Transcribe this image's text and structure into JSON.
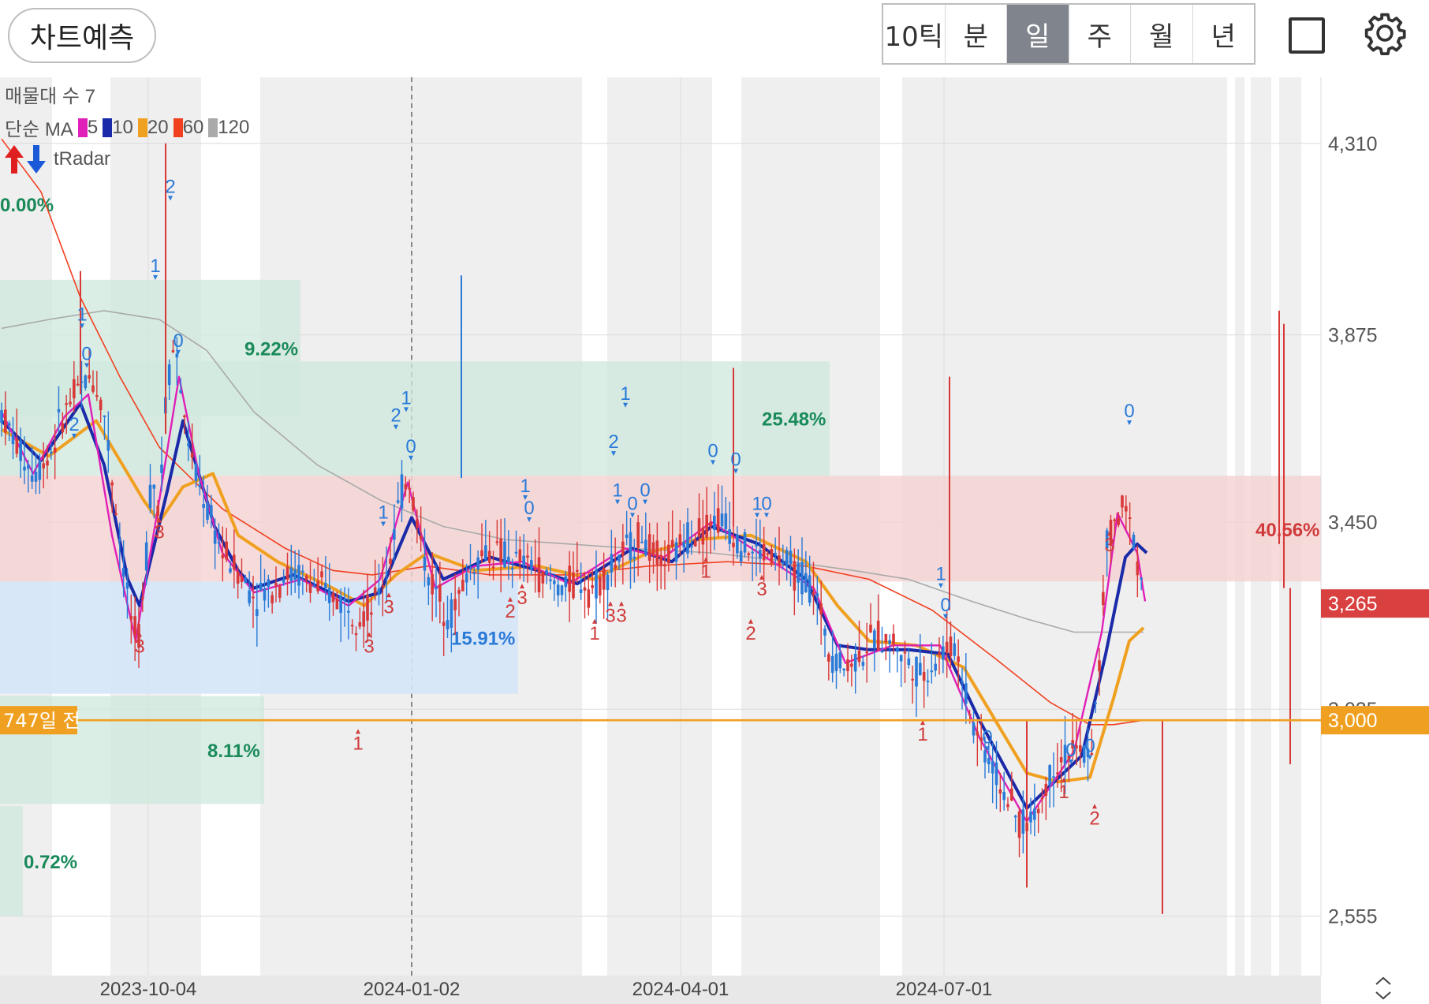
{
  "toolbar": {
    "predict_label": "차트예측",
    "periods": [
      "10틱",
      "분",
      "일",
      "주",
      "월",
      "년"
    ],
    "active_period": "일",
    "icons": [
      "square-icon",
      "gear-icon"
    ]
  },
  "legend": {
    "volume_profile": "매물대 수 7",
    "ma_prefix": "단순 MA",
    "ma_items": [
      {
        "label": "5",
        "color": "#e020b8"
      },
      {
        "label": "10",
        "color": "#1a2aa8"
      },
      {
        "label": "20",
        "color": "#f0a020"
      },
      {
        "label": "60",
        "color": "#f04020"
      },
      {
        "label": "120",
        "color": "#aaaaaa"
      }
    ],
    "radar_label": "tRadar"
  },
  "colors": {
    "up": "#d93838",
    "down": "#2a7ad8",
    "ma5": "#e020b8",
    "ma10": "#1a2aa8",
    "ma20": "#f0a020",
    "ma60": "#f04020",
    "ma120": "#aaaaaa",
    "zone_green": "#cfe8dc",
    "zone_red": "#f5d2d2",
    "zone_blue": "#d5e6f7",
    "price_badge": "#d94040",
    "ref_line": "#f0a020"
  },
  "chart_data": {
    "type": "candlestick",
    "x_ticks": [
      "2023-10-04",
      "2024-01-02",
      "2024-04-01",
      "2024-07-01"
    ],
    "y_ticks": [
      4310,
      3875,
      3450,
      3025,
      2555
    ],
    "y_tick_labels": [
      "4,310",
      "3,875",
      "3,450",
      "3,025",
      "2,555"
    ],
    "ylim": [
      2420,
      4460
    ],
    "current_price": {
      "value": 3265,
      "label": "3,265"
    },
    "reference_line": {
      "value": 3000,
      "label": "3,000",
      "tag": "747일 전"
    },
    "volume_profile_zones": [
      {
        "pct": "0.00%",
        "low": 4310,
        "high": 4460
      },
      {
        "pct": "9.22%",
        "low": 3690,
        "high": 4000
      },
      {
        "pct": "25.48%",
        "low": 3555,
        "high": 3815
      },
      {
        "pct": "40.56%",
        "low": 3315,
        "high": 3555
      },
      {
        "pct": "15.91%",
        "low": 3060,
        "high": 3315
      },
      {
        "pct": "8.11%",
        "low": 2810,
        "high": 3055
      },
      {
        "pct": "0.72%",
        "low": 2555,
        "high": 2805
      }
    ],
    "close_path": [
      [
        0,
        3700
      ],
      [
        20,
        3620
      ],
      [
        40,
        3560
      ],
      [
        60,
        3600
      ],
      [
        80,
        3700
      ],
      [
        100,
        3760
      ],
      [
        115,
        3780
      ],
      [
        130,
        3700
      ],
      [
        145,
        3480
      ],
      [
        160,
        3280
      ],
      [
        172,
        3160
      ],
      [
        180,
        3280
      ],
      [
        190,
        3560
      ],
      [
        200,
        3480
      ],
      [
        210,
        3780
      ],
      [
        220,
        3860
      ],
      [
        232,
        3680
      ],
      [
        245,
        3560
      ],
      [
        260,
        3480
      ],
      [
        280,
        3380
      ],
      [
        300,
        3340
      ],
      [
        320,
        3280
      ],
      [
        340,
        3300
      ],
      [
        360,
        3330
      ],
      [
        380,
        3330
      ],
      [
        400,
        3300
      ],
      [
        420,
        3280
      ],
      [
        440,
        3260
      ],
      [
        455,
        3240
      ],
      [
        470,
        3250
      ],
      [
        490,
        3350
      ],
      [
        505,
        3500
      ],
      [
        515,
        3560
      ],
      [
        525,
        3470
      ],
      [
        540,
        3330
      ],
      [
        555,
        3280
      ],
      [
        570,
        3240
      ],
      [
        590,
        3330
      ],
      [
        610,
        3380
      ],
      [
        630,
        3380
      ],
      [
        650,
        3360
      ],
      [
        670,
        3360
      ],
      [
        690,
        3320
      ],
      [
        710,
        3300
      ],
      [
        730,
        3320
      ],
      [
        750,
        3300
      ],
      [
        770,
        3340
      ],
      [
        790,
        3380
      ],
      [
        810,
        3420
      ],
      [
        830,
        3360
      ],
      [
        850,
        3370
      ],
      [
        870,
        3420
      ],
      [
        890,
        3440
      ],
      [
        910,
        3460
      ],
      [
        930,
        3420
      ],
      [
        950,
        3380
      ],
      [
        970,
        3380
      ],
      [
        990,
        3360
      ],
      [
        1010,
        3330
      ],
      [
        1030,
        3300
      ],
      [
        1050,
        3160
      ],
      [
        1070,
        3120
      ],
      [
        1090,
        3150
      ],
      [
        1110,
        3190
      ],
      [
        1130,
        3180
      ],
      [
        1150,
        3130
      ],
      [
        1170,
        3100
      ],
      [
        1190,
        3150
      ],
      [
        1210,
        3170
      ],
      [
        1230,
        3000
      ],
      [
        1250,
        2920
      ],
      [
        1270,
        2840
      ],
      [
        1285,
        2780
      ],
      [
        1300,
        2760
      ],
      [
        1315,
        2800
      ],
      [
        1330,
        2880
      ],
      [
        1345,
        2920
      ],
      [
        1360,
        2930
      ],
      [
        1380,
        2920
      ],
      [
        1390,
        3060
      ],
      [
        1400,
        3380
      ],
      [
        1410,
        3450
      ],
      [
        1425,
        3480
      ],
      [
        1438,
        3400
      ],
      [
        1450,
        3260
      ]
    ],
    "moving_averages": {
      "ma5": [
        [
          0,
          3700
        ],
        [
          40,
          3560
        ],
        [
          80,
          3690
        ],
        [
          110,
          3740
        ],
        [
          140,
          3420
        ],
        [
          170,
          3180
        ],
        [
          200,
          3500
        ],
        [
          225,
          3780
        ],
        [
          250,
          3560
        ],
        [
          280,
          3380
        ],
        [
          320,
          3290
        ],
        [
          380,
          3320
        ],
        [
          440,
          3260
        ],
        [
          480,
          3320
        ],
        [
          515,
          3540
        ],
        [
          550,
          3300
        ],
        [
          600,
          3350
        ],
        [
          660,
          3360
        ],
        [
          720,
          3310
        ],
        [
          790,
          3390
        ],
        [
          840,
          3370
        ],
        [
          900,
          3450
        ],
        [
          960,
          3380
        ],
        [
          1030,
          3300
        ],
        [
          1070,
          3130
        ],
        [
          1130,
          3170
        ],
        [
          1190,
          3170
        ],
        [
          1240,
          2960
        ],
        [
          1300,
          2770
        ],
        [
          1360,
          2930
        ],
        [
          1395,
          3200
        ],
        [
          1415,
          3470
        ],
        [
          1440,
          3380
        ],
        [
          1450,
          3270
        ]
      ],
      "ma10": [
        [
          0,
          3680
        ],
        [
          50,
          3590
        ],
        [
          100,
          3720
        ],
        [
          130,
          3580
        ],
        [
          160,
          3320
        ],
        [
          175,
          3260
        ],
        [
          210,
          3520
        ],
        [
          230,
          3680
        ],
        [
          270,
          3440
        ],
        [
          300,
          3340
        ],
        [
          320,
          3300
        ],
        [
          370,
          3330
        ],
        [
          440,
          3270
        ],
        [
          480,
          3290
        ],
        [
          520,
          3460
        ],
        [
          560,
          3320
        ],
        [
          620,
          3370
        ],
        [
          680,
          3340
        ],
        [
          730,
          3310
        ],
        [
          800,
          3390
        ],
        [
          850,
          3360
        ],
        [
          900,
          3440
        ],
        [
          960,
          3400
        ],
        [
          1020,
          3320
        ],
        [
          1060,
          3170
        ],
        [
          1100,
          3160
        ],
        [
          1150,
          3160
        ],
        [
          1200,
          3150
        ],
        [
          1240,
          3000
        ],
        [
          1300,
          2800
        ],
        [
          1370,
          2920
        ],
        [
          1400,
          3150
        ],
        [
          1425,
          3370
        ],
        [
          1440,
          3400
        ],
        [
          1452,
          3380
        ]
      ],
      "ma20": [
        [
          0,
          3660
        ],
        [
          60,
          3600
        ],
        [
          120,
          3680
        ],
        [
          180,
          3500
        ],
        [
          200,
          3450
        ],
        [
          230,
          3530
        ],
        [
          268,
          3560
        ],
        [
          300,
          3420
        ],
        [
          350,
          3360
        ],
        [
          420,
          3300
        ],
        [
          460,
          3260
        ],
        [
          500,
          3330
        ],
        [
          540,
          3380
        ],
        [
          600,
          3340
        ],
        [
          680,
          3350
        ],
        [
          750,
          3320
        ],
        [
          820,
          3380
        ],
        [
          880,
          3410
        ],
        [
          950,
          3420
        ],
        [
          1020,
          3360
        ],
        [
          1060,
          3260
        ],
        [
          1100,
          3180
        ],
        [
          1160,
          3170
        ],
        [
          1220,
          3120
        ],
        [
          1260,
          3000
        ],
        [
          1300,
          2880
        ],
        [
          1340,
          2860
        ],
        [
          1380,
          2870
        ],
        [
          1410,
          3050
        ],
        [
          1430,
          3180
        ],
        [
          1448,
          3210
        ]
      ],
      "ma60": [
        [
          0,
          4320
        ],
        [
          50,
          4200
        ],
        [
          100,
          3960
        ],
        [
          150,
          3780
        ],
        [
          200,
          3620
        ],
        [
          280,
          3480
        ],
        [
          360,
          3390
        ],
        [
          420,
          3340
        ],
        [
          470,
          3330
        ],
        [
          540,
          3350
        ],
        [
          620,
          3330
        ],
        [
          720,
          3330
        ],
        [
          820,
          3350
        ],
        [
          920,
          3360
        ],
        [
          1020,
          3350
        ],
        [
          1100,
          3320
        ],
        [
          1180,
          3250
        ],
        [
          1260,
          3140
        ],
        [
          1330,
          3040
        ],
        [
          1380,
          2990
        ],
        [
          1410,
          2990
        ],
        [
          1448,
          3000
        ]
      ],
      "ma120": [
        [
          0,
          3890
        ],
        [
          60,
          3910
        ],
        [
          130,
          3930
        ],
        [
          200,
          3910
        ],
        [
          260,
          3840
        ],
        [
          320,
          3700
        ],
        [
          400,
          3580
        ],
        [
          480,
          3500
        ],
        [
          560,
          3440
        ],
        [
          640,
          3410
        ],
        [
          720,
          3400
        ],
        [
          800,
          3390
        ],
        [
          900,
          3380
        ],
        [
          1000,
          3360
        ],
        [
          1080,
          3340
        ],
        [
          1150,
          3320
        ],
        [
          1230,
          3270
        ],
        [
          1300,
          3230
        ],
        [
          1360,
          3200
        ],
        [
          1448,
          3200
        ]
      ]
    },
    "signal_markers": [
      {
        "x": 102,
        "v": 3890,
        "text": "1",
        "dir": "down"
      },
      {
        "x": 108,
        "v": 3800,
        "text": "0",
        "dir": "down"
      },
      {
        "x": 92,
        "v": 3640,
        "text": "2",
        "dir": "down"
      },
      {
        "x": 195,
        "v": 4000,
        "text": "1",
        "dir": "down"
      },
      {
        "x": 214,
        "v": 4180,
        "text": "2",
        "dir": "down"
      },
      {
        "x": 224,
        "v": 3830,
        "text": "0",
        "dir": "down"
      },
      {
        "x": 500,
        "v": 3660,
        "text": "2",
        "dir": "down"
      },
      {
        "x": 513,
        "v": 3700,
        "text": "1",
        "dir": "down"
      },
      {
        "x": 519,
        "v": 3590,
        "text": "0",
        "dir": "down"
      },
      {
        "x": 484,
        "v": 3440,
        "text": "1",
        "dir": "down"
      },
      {
        "x": 664,
        "v": 3500,
        "text": "1",
        "dir": "down"
      },
      {
        "x": 669,
        "v": 3450,
        "text": "0",
        "dir": "down"
      },
      {
        "x": 776,
        "v": 3600,
        "text": "2",
        "dir": "down"
      },
      {
        "x": 791,
        "v": 3710,
        "text": "1",
        "dir": "down"
      },
      {
        "x": 781,
        "v": 3490,
        "text": "1",
        "dir": "down"
      },
      {
        "x": 800,
        "v": 3460,
        "text": "0",
        "dir": "down"
      },
      {
        "x": 816,
        "v": 3490,
        "text": "0",
        "dir": "down"
      },
      {
        "x": 902,
        "v": 3580,
        "text": "0",
        "dir": "down"
      },
      {
        "x": 931,
        "v": 3560,
        "text": "0",
        "dir": "down"
      },
      {
        "x": 958,
        "v": 3460,
        "text": "1",
        "dir": "down"
      },
      {
        "x": 970,
        "v": 3460,
        "text": "0",
        "dir": "down"
      },
      {
        "x": 1191,
        "v": 3300,
        "text": "1",
        "dir": "down"
      },
      {
        "x": 1197,
        "v": 3230,
        "text": "0",
        "dir": "down"
      },
      {
        "x": 1250,
        "v": 2930,
        "text": "0",
        "dir": "down"
      },
      {
        "x": 1356,
        "v": 2900,
        "text": "0",
        "dir": "down"
      },
      {
        "x": 1380,
        "v": 2910,
        "text": "0",
        "dir": "down"
      },
      {
        "x": 1430,
        "v": 3670,
        "text": "0",
        "dir": "down"
      },
      {
        "x": 200,
        "v": 3460,
        "text": "3",
        "dir": "up"
      },
      {
        "x": 175,
        "v": 3200,
        "text": "3",
        "dir": "up"
      },
      {
        "x": 452,
        "v": 2980,
        "text": "1",
        "dir": "up"
      },
      {
        "x": 466,
        "v": 3200,
        "text": "3",
        "dir": "up"
      },
      {
        "x": 491,
        "v": 3290,
        "text": "3",
        "dir": "up"
      },
      {
        "x": 645,
        "v": 3280,
        "text": "2",
        "dir": "up"
      },
      {
        "x": 660,
        "v": 3310,
        "text": "3",
        "dir": "up"
      },
      {
        "x": 752,
        "v": 3230,
        "text": "1",
        "dir": "up"
      },
      {
        "x": 772,
        "v": 3270,
        "text": "3",
        "dir": "up"
      },
      {
        "x": 786,
        "v": 3270,
        "text": "3",
        "dir": "up"
      },
      {
        "x": 893,
        "v": 3370,
        "text": "1",
        "dir": "up"
      },
      {
        "x": 964,
        "v": 3330,
        "text": "3",
        "dir": "up"
      },
      {
        "x": 950,
        "v": 3230,
        "text": "2",
        "dir": "up"
      },
      {
        "x": 1168,
        "v": 3000,
        "text": "1",
        "dir": "up"
      },
      {
        "x": 1347,
        "v": 2870,
        "text": "1",
        "dir": "up"
      },
      {
        "x": 1386,
        "v": 2810,
        "text": "2",
        "dir": "up"
      },
      {
        "x": 1405,
        "v": 3430,
        "text": "3",
        "dir": "up"
      }
    ]
  }
}
